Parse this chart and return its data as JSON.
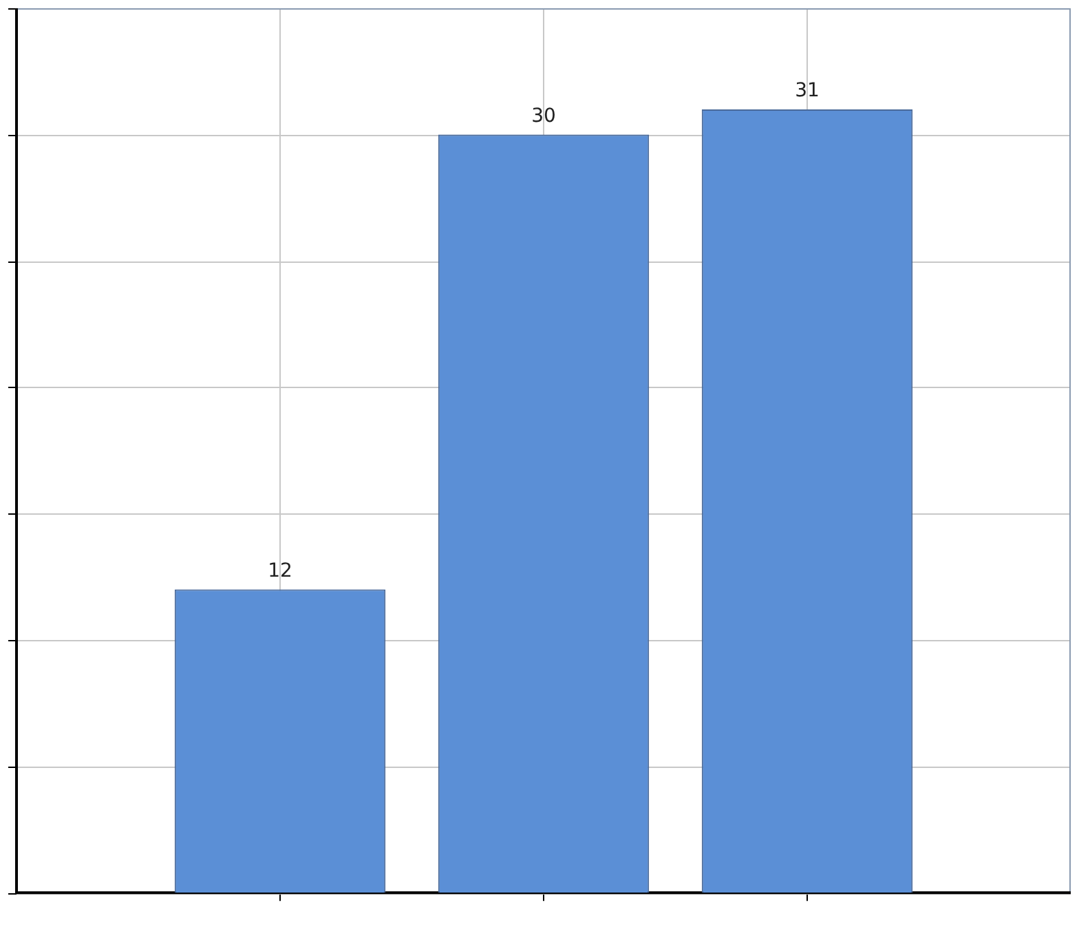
{
  "chart_data": {
    "type": "bar",
    "categories": [
      null,
      null,
      null
    ],
    "values": [
      12,
      30,
      31
    ],
    "color": "#5b8fd6",
    "ylim": [
      0,
      35
    ],
    "yticks": [
      {
        "value": 0,
        "label": null
      },
      {
        "value": 5,
        "label": null
      },
      {
        "value": 10,
        "label": null
      },
      {
        "value": 15,
        "label": null
      },
      {
        "value": 20,
        "label": null
      },
      {
        "value": 25,
        "label": null
      },
      {
        "value": 30,
        "label": null
      },
      {
        "value": 35,
        "label": null
      }
    ],
    "grid": true,
    "data_labels": true
  }
}
